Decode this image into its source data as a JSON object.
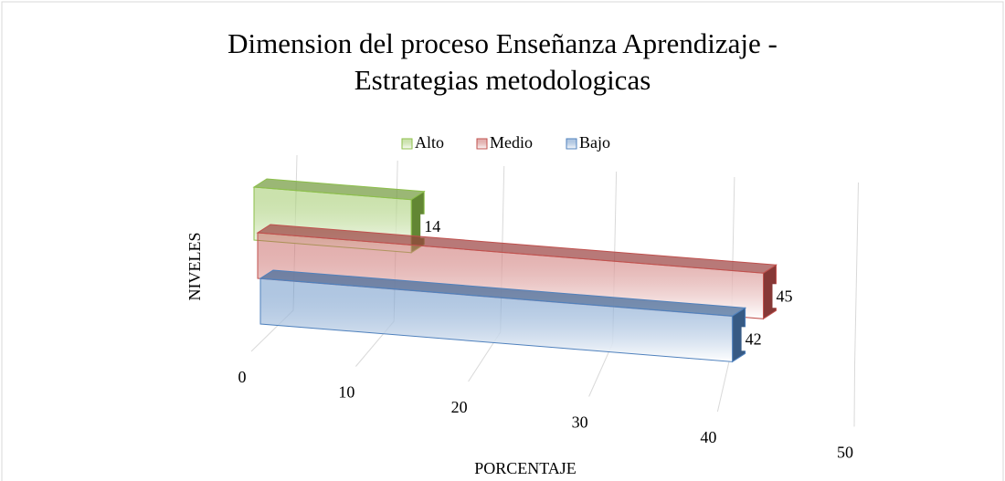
{
  "chart_data": {
    "type": "bar3d_horizontal",
    "title": "Dimension del proceso Enseñanza Aprendizaje - Estrategias metodologicas",
    "y_axis_label": "NIVELES",
    "x_axis_label": "PORCENTAJE",
    "categories": [
      null
    ],
    "series": [
      {
        "name": "Alto",
        "color": "#8cbf4a",
        "values": [
          14
        ]
      },
      {
        "name": "Medio",
        "color": "#c0504d",
        "values": [
          45
        ]
      },
      {
        "name": "Bajo",
        "color": "#4f81bd",
        "values": [
          42
        ]
      }
    ],
    "xlim": [
      0,
      50
    ],
    "xticks": [
      0,
      10,
      20,
      30,
      40,
      50
    ],
    "grid": true,
    "legend": "top"
  }
}
